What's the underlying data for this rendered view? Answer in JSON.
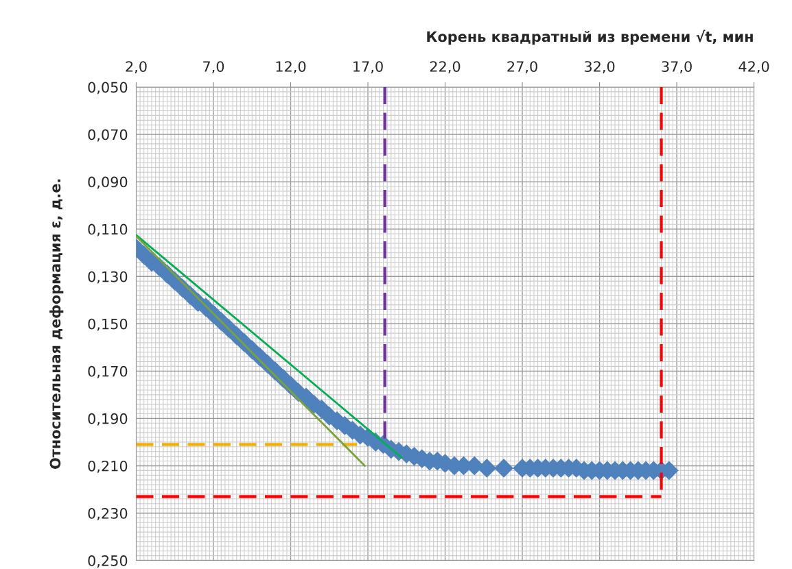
{
  "chart_data": {
    "type": "scatter",
    "xlabel": "Корень квадратный из времени √t, мин",
    "ylabel": "Относительная деформация ε, д.е.",
    "xlim": [
      2,
      42
    ],
    "xticks": [
      {
        "value": 2,
        "label": "2,0"
      },
      {
        "value": 7,
        "label": "7,0"
      },
      {
        "value": 12,
        "label": "12,0"
      },
      {
        "value": 17,
        "label": "17,0"
      },
      {
        "value": 22,
        "label": "22,0"
      },
      {
        "value": 27,
        "label": "27,0"
      },
      {
        "value": 32,
        "label": "32,0"
      },
      {
        "value": 37,
        "label": "37,0"
      },
      {
        "value": 42,
        "label": "42,0"
      }
    ],
    "ylim": [
      0.25,
      0.05
    ],
    "yticks": [
      {
        "value": 0.05,
        "label": "0,050"
      },
      {
        "value": 0.07,
        "label": "0,070"
      },
      {
        "value": 0.09,
        "label": "0,090"
      },
      {
        "value": 0.11,
        "label": "0,110"
      },
      {
        "value": 0.13,
        "label": "0,130"
      },
      {
        "value": 0.15,
        "label": "0,150"
      },
      {
        "value": 0.17,
        "label": "0,170"
      },
      {
        "value": 0.19,
        "label": "0,190"
      },
      {
        "value": 0.21,
        "label": "0,210"
      },
      {
        "value": 0.23,
        "label": "0,230"
      },
      {
        "value": 0.25,
        "label": "0,250"
      }
    ],
    "grid": true,
    "series": [
      {
        "type": "line",
        "color": "#f0b000",
        "line_style": "dashed",
        "x": [
          2,
          16.3
        ],
        "values": [
          0.201,
          0.201
        ]
      },
      {
        "type": "line",
        "color": "#ff0000",
        "line_style": "dashed",
        "x": [
          2,
          36.0
        ],
        "values": [
          0.223,
          0.223
        ]
      },
      {
        "type": "line",
        "color": "#ff0000",
        "line_style": "dashed",
        "x": [
          36.0,
          36.0
        ],
        "values": [
          0.05,
          0.223
        ]
      },
      {
        "type": "line",
        "color": "#7030a0",
        "line_style": "dashed",
        "x": [
          18.1,
          18.1
        ],
        "values": [
          0.05,
          0.201
        ]
      },
      {
        "color": "#4f81bd",
        "marker": "diamond",
        "x": [
          2,
          2.5,
          3,
          3.5,
          4,
          4.5,
          5,
          5.5,
          6,
          6.5,
          7,
          7.5,
          8,
          8.5,
          9,
          9.5,
          10,
          10.5,
          11,
          11.5,
          12,
          12.5,
          13,
          13.5,
          14,
          14.5,
          15,
          15.5,
          16,
          16.5,
          17,
          17.5,
          18,
          18.5,
          19,
          19.5,
          20,
          20.5,
          21,
          21.5,
          22,
          22.6,
          23.2,
          23.9,
          24.7,
          25.8,
          27,
          27.5,
          28,
          28.5,
          29,
          29.5,
          30,
          30.5,
          31,
          31.5,
          32,
          32.5,
          33,
          33.5,
          34,
          34.5,
          35,
          35.5,
          36,
          36.5
        ],
        "values": [
          0.118,
          0.121,
          0.124,
          0.126,
          0.129,
          0.132,
          0.135,
          0.138,
          0.141,
          0.143,
          0.146,
          0.149,
          0.152,
          0.155,
          0.158,
          0.161,
          0.164,
          0.167,
          0.17,
          0.173,
          0.176,
          0.179,
          0.181,
          0.184,
          0.186,
          0.189,
          0.191,
          0.193,
          0.195,
          0.197,
          0.198,
          0.2,
          0.201,
          0.203,
          0.204,
          0.205,
          0.206,
          0.207,
          0.208,
          0.208,
          0.209,
          0.21,
          0.21,
          0.21,
          0.211,
          0.211,
          0.211,
          0.211,
          0.211,
          0.211,
          0.211,
          0.211,
          0.211,
          0.211,
          0.212,
          0.212,
          0.212,
          0.212,
          0.212,
          0.212,
          0.212,
          0.212,
          0.212,
          0.212,
          0.212,
          0.212
        ]
      },
      {
        "type": "line",
        "color": "#00b050",
        "line_style": "solid",
        "x": [
          2,
          19.2
        ],
        "values": [
          0.1125,
          0.2066
        ]
      },
      {
        "type": "line",
        "color": "#77a33a",
        "line_style": "solid",
        "x": [
          2,
          16.8
        ],
        "values": [
          0.113,
          0.21
        ]
      }
    ]
  }
}
